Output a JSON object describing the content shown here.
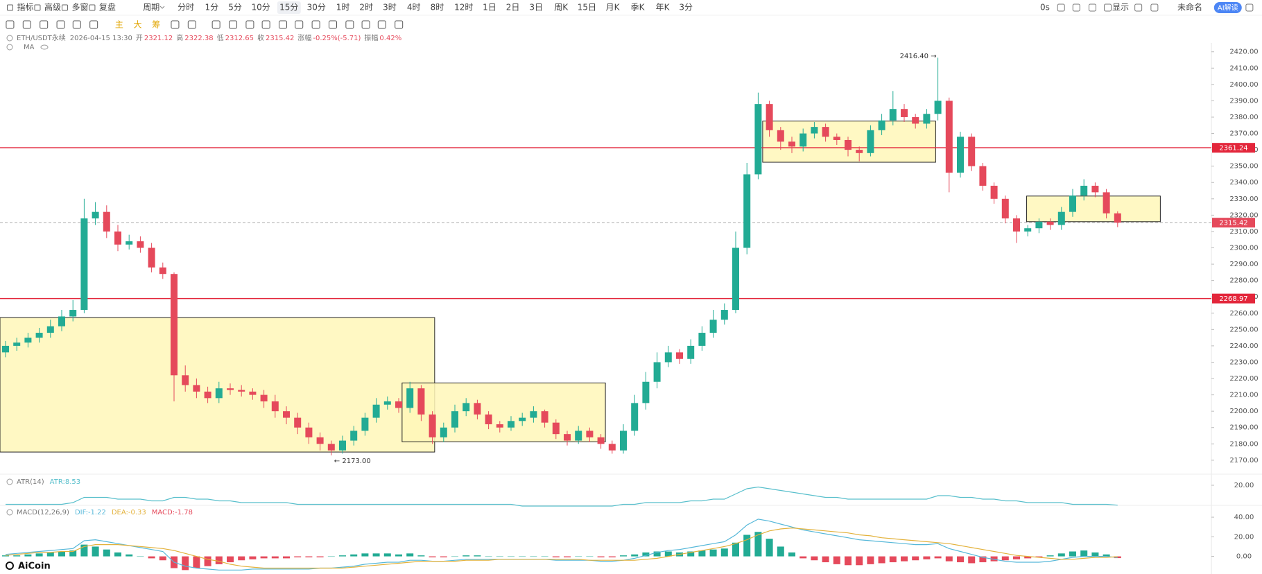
{
  "toolbar": {
    "left": [
      "指标",
      "高级",
      "多窗",
      "复盘"
    ],
    "period": "周期",
    "intervals": [
      "分时",
      "1分",
      "5分",
      "10分",
      "15分",
      "30分",
      "1时",
      "2时",
      "3时",
      "4时",
      "8时",
      "12时",
      "1日",
      "2日",
      "3日",
      "周K",
      "15日",
      "月K",
      "季K",
      "年K",
      "3分"
    ],
    "active_interval": "15分",
    "right": [
      "0s",
      "显示",
      "未命名"
    ],
    "ai_button": "AI解读",
    "quick": [
      "主",
      "大",
      "筹"
    ]
  },
  "header": {
    "symbol": "ETH/USDT永续",
    "time": "2026-04-15 13:30",
    "fields": [
      {
        "label": "开",
        "value": "2321.12"
      },
      {
        "label": "高",
        "value": "2322.38"
      },
      {
        "label": "低",
        "value": "2312.65"
      },
      {
        "label": "收",
        "value": "2315.42"
      },
      {
        "label": "涨幅",
        "value": "-0.25%(-5.71)"
      },
      {
        "label": "振幅",
        "value": "0.42%"
      }
    ],
    "ma": "MA"
  },
  "logo": "AiCoin",
  "chart_data": [
    {
      "type": "candlestick",
      "up_color": "#22ab94",
      "down_color": "#e5495b",
      "ylim": [
        2164,
        2422
      ],
      "yticks": [
        {
          "value": 2170,
          "label": "2170.00"
        },
        {
          "value": 2180,
          "label": "2180.00"
        },
        {
          "value": 2190,
          "label": "2190.00"
        },
        {
          "value": 2200,
          "label": "2200.00"
        },
        {
          "value": 2210,
          "label": "2210.00"
        },
        {
          "value": 2220,
          "label": "2220.00"
        },
        {
          "value": 2230,
          "label": "2230.00"
        },
        {
          "value": 2240,
          "label": "2240.00"
        },
        {
          "value": 2250,
          "label": "2250.00"
        },
        {
          "value": 2260,
          "label": "2260.00"
        },
        {
          "value": 2270,
          "label": "2270.00"
        },
        {
          "value": 2280,
          "label": "2280.00"
        },
        {
          "value": 2290,
          "label": "2290.00"
        },
        {
          "value": 2300,
          "label": "2300.00"
        },
        {
          "value": 2310,
          "label": "2310.00"
        },
        {
          "value": 2320,
          "label": "2320.00"
        },
        {
          "value": 2330,
          "label": "2330.00"
        },
        {
          "value": 2340,
          "label": "2340.00"
        },
        {
          "value": 2350,
          "label": "2350.00"
        },
        {
          "value": 2360,
          "label": "2360.00"
        },
        {
          "value": 2370,
          "label": "2370.00"
        },
        {
          "value": 2380,
          "label": "2380.00"
        },
        {
          "value": 2390,
          "label": "2390.00"
        },
        {
          "value": 2400,
          "label": "2400.00"
        },
        {
          "value": 2410,
          "label": "2410.00"
        },
        {
          "value": 2420,
          "label": "2420.00"
        }
      ],
      "open": [
        2236,
        2240,
        2242,
        2245,
        2248,
        2252,
        2258,
        2262,
        2318,
        2322,
        2310,
        2302,
        2304,
        2300,
        2288,
        2284,
        2222,
        2216,
        2212,
        2208,
        2214,
        2213,
        2212,
        2210,
        2206,
        2200,
        2196,
        2190,
        2184,
        2180,
        2176,
        2182,
        2188,
        2196,
        2204,
        2206,
        2202,
        2214,
        2198,
        2184,
        2190,
        2200,
        2205,
        2198,
        2192,
        2190,
        2194,
        2196,
        2200,
        2193,
        2186,
        2182,
        2188,
        2184,
        2180,
        2176,
        2188,
        2205,
        2218,
        2230,
        2236,
        2232,
        2240,
        2248,
        2256,
        2262,
        2300,
        2345,
        2388,
        2372,
        2365,
        2362,
        2370,
        2374,
        2368,
        2366,
        2360,
        2358,
        2372,
        2378,
        2385,
        2380,
        2376,
        2382,
        2390,
        2346,
        2368,
        2350,
        2338,
        2330,
        2318,
        2310,
        2312,
        2316,
        2314,
        2322,
        2332,
        2338,
        2334,
        2321.12
      ],
      "high": [
        2243,
        2245,
        2248,
        2251,
        2256,
        2262,
        2268,
        2330,
        2328,
        2326,
        2314,
        2308,
        2307,
        2303,
        2291,
        2285,
        2228,
        2220,
        2215,
        2218,
        2217,
        2216,
        2214,
        2213,
        2210,
        2203,
        2199,
        2193,
        2187,
        2182,
        2185,
        2191,
        2199,
        2208,
        2209,
        2208,
        2218,
        2216,
        2200,
        2193,
        2204,
        2208,
        2207,
        2200,
        2194,
        2197,
        2199,
        2203,
        2201,
        2195,
        2188,
        2191,
        2190,
        2186,
        2182,
        2192,
        2210,
        2224,
        2236,
        2240,
        2238,
        2244,
        2252,
        2262,
        2266,
        2310,
        2352,
        2395,
        2390,
        2374,
        2368,
        2373,
        2377,
        2376,
        2370,
        2368,
        2362,
        2375,
        2382,
        2396,
        2388,
        2382,
        2385,
        2416.4,
        2392,
        2371,
        2370,
        2352,
        2340,
        2332,
        2320,
        2314,
        2318,
        2318,
        2325,
        2336,
        2342,
        2340,
        2336,
        2322.38
      ],
      "low": [
        2233,
        2237,
        2239,
        2242,
        2245,
        2249,
        2255,
        2260,
        2314,
        2306,
        2298,
        2299,
        2297,
        2285,
        2281,
        2206,
        2212,
        2208,
        2205,
        2205,
        2210,
        2209,
        2207,
        2202,
        2196,
        2192,
        2186,
        2180,
        2176,
        2173,
        2174,
        2179,
        2185,
        2193,
        2201,
        2199,
        2199,
        2194,
        2180,
        2181,
        2187,
        2197,
        2195,
        2189,
        2187,
        2188,
        2191,
        2193,
        2190,
        2183,
        2179,
        2180,
        2181,
        2177,
        2174,
        2174,
        2185,
        2201,
        2214,
        2227,
        2229,
        2229,
        2237,
        2245,
        2253,
        2260,
        2296,
        2342,
        2368,
        2360,
        2358,
        2359,
        2367,
        2365,
        2363,
        2356,
        2353,
        2356,
        2369,
        2375,
        2377,
        2373,
        2373,
        2378,
        2334,
        2343,
        2347,
        2335,
        2327,
        2315,
        2303,
        2307,
        2309,
        2311,
        2311,
        2319,
        2329,
        2331,
        2318,
        2312.65
      ],
      "close": [
        2240,
        2242,
        2245,
        2248,
        2252,
        2258,
        2262,
        2318,
        2322,
        2310,
        2302,
        2304,
        2300,
        2288,
        2284,
        2222,
        2216,
        2212,
        2208,
        2214,
        2213,
        2212,
        2210,
        2206,
        2200,
        2196,
        2190,
        2184,
        2180,
        2176,
        2182,
        2188,
        2196,
        2204,
        2206,
        2202,
        2214,
        2198,
        2184,
        2190,
        2200,
        2205,
        2198,
        2192,
        2190,
        2194,
        2196,
        2200,
        2193,
        2186,
        2182,
        2188,
        2184,
        2180,
        2176,
        2188,
        2205,
        2218,
        2230,
        2236,
        2232,
        2240,
        2248,
        2256,
        2262,
        2300,
        2345,
        2388,
        2372,
        2365,
        2362,
        2370,
        2374,
        2368,
        2366,
        2360,
        2358,
        2372,
        2378,
        2385,
        2380,
        2376,
        2382,
        2390,
        2346,
        2368,
        2350,
        2338,
        2330,
        2318,
        2310,
        2312,
        2316,
        2314,
        2322,
        2332,
        2338,
        2334,
        2321.12,
        2315.42
      ],
      "boxes": [
        {
          "from": -1,
          "to": 38.2,
          "top": 2257.3,
          "bottom": 2175
        },
        {
          "from": 35.3,
          "to": 53.4,
          "top": 2217.3,
          "bottom": 2181.3
        },
        {
          "from": 67.4,
          "to": 82.8,
          "top": 2377.6,
          "bottom": 2352.4
        },
        {
          "from": 90.9,
          "to": 102.8,
          "top": 2331.7,
          "bottom": 2316
        }
      ],
      "box_color": "#fff7b8",
      "levels": [
        {
          "value": 2361.24,
          "label": "2361.24"
        },
        {
          "value": 2268.97,
          "label": "2268.97"
        }
      ],
      "level_color": "#e3263b",
      "last_price": {
        "value": 2315.42,
        "label": "2315.42"
      },
      "annotations": [
        {
          "text": "2416.40 →",
          "value": 2416.4,
          "kind": "high"
        },
        {
          "text": "← 2173.00",
          "value": 2173,
          "kind": "low"
        }
      ]
    },
    {
      "type": "line",
      "title": "ATR(14)",
      "readout": "ATR:8.53",
      "color": "#58bfcc",
      "ylim": [
        6,
        22
      ],
      "yticks": [
        {
          "value": 20,
          "label": "20.00"
        }
      ],
      "values": [
        9,
        9,
        9,
        9,
        9,
        9,
        10,
        13,
        13,
        13,
        12,
        12,
        12,
        11,
        11,
        13,
        13,
        12,
        12,
        11,
        11,
        10,
        10,
        10,
        10,
        10,
        9,
        9,
        9,
        9,
        9,
        9,
        9,
        9,
        9,
        9,
        9,
        9,
        9,
        9,
        9,
        9,
        9,
        9,
        9,
        9,
        8,
        8,
        8,
        8,
        8,
        8,
        8,
        8,
        8,
        9,
        9,
        10,
        10,
        10,
        10,
        11,
        11,
        12,
        12,
        15,
        18,
        19,
        18,
        17,
        16,
        15,
        14,
        13,
        13,
        12,
        12,
        12,
        12,
        12,
        12,
        12,
        12,
        14,
        14,
        13,
        13,
        12,
        12,
        11,
        11,
        10,
        10,
        10,
        10,
        9,
        9,
        9,
        9,
        8.53
      ]
    },
    {
      "type": "macd",
      "title": "MACD(12,26,9)",
      "readouts": [
        "DIF:-1.22",
        "DEA:-0.33",
        "MACD:-1.78"
      ],
      "ylim": [
        -18,
        45
      ],
      "yticks": [
        {
          "value": 0,
          "label": "0.00"
        },
        {
          "value": 20,
          "label": "20.00"
        },
        {
          "value": 40,
          "label": "40.00"
        }
      ],
      "hist_up_color": "#22ab94",
      "hist_down_color": "#e5495b",
      "dif_color": "#56b8d9",
      "dea_color": "#e3b23c",
      "hist": [
        1,
        1,
        2,
        3,
        4,
        5,
        6,
        12,
        10,
        7,
        4,
        2,
        0,
        -2,
        -4,
        -12,
        -14,
        -12,
        -10,
        -8,
        -6,
        -4,
        -3,
        -2,
        -2,
        -2,
        -1,
        -1,
        -1,
        0,
        1,
        2,
        3,
        3,
        3,
        2,
        3,
        1,
        -1,
        -1,
        0,
        1,
        1,
        0,
        0,
        0,
        0,
        0,
        0,
        -1,
        -1,
        0,
        0,
        -1,
        -1,
        1,
        2,
        4,
        5,
        5,
        4,
        5,
        6,
        7,
        8,
        14,
        22,
        25,
        18,
        10,
        4,
        -2,
        -4,
        -6,
        -8,
        -9,
        -9,
        -8,
        -7,
        -6,
        -5,
        -4,
        -3,
        -2,
        -5,
        -6,
        -7,
        -6,
        -5,
        -4,
        -3,
        -2,
        -1,
        1,
        3,
        5,
        6,
        4,
        2,
        -1.78
      ],
      "dif": [
        2,
        3,
        4,
        5,
        6,
        7,
        8,
        16,
        17,
        15,
        13,
        11,
        9,
        7,
        5,
        -6,
        -10,
        -12,
        -13,
        -14,
        -14,
        -14,
        -13,
        -13,
        -13,
        -13,
        -13,
        -13,
        -12,
        -12,
        -11,
        -10,
        -8,
        -7,
        -6,
        -6,
        -4,
        -4,
        -5,
        -5,
        -4,
        -3,
        -3,
        -3,
        -3,
        -3,
        -3,
        -3,
        -3,
        -4,
        -4,
        -4,
        -4,
        -5,
        -5,
        -4,
        -2,
        1,
        4,
        6,
        7,
        9,
        11,
        13,
        15,
        22,
        32,
        38,
        36,
        33,
        30,
        27,
        25,
        23,
        21,
        19,
        17,
        16,
        15,
        14,
        13,
        12,
        12,
        13,
        8,
        5,
        2,
        -1,
        -3,
        -5,
        -6,
        -6,
        -6,
        -5,
        -3,
        -1,
        0,
        0,
        0,
        -1.22
      ],
      "dea": [
        1,
        2,
        3,
        4,
        4,
        5,
        5,
        10,
        12,
        12,
        12,
        11,
        10,
        9,
        8,
        6,
        3,
        0,
        -3,
        -5,
        -8,
        -10,
        -11,
        -12,
        -12,
        -12,
        -12,
        -12,
        -12,
        -12,
        -12,
        -11,
        -10,
        -9,
        -8,
        -7,
        -6,
        -5,
        -5,
        -5,
        -5,
        -4,
        -4,
        -4,
        -3,
        -3,
        -3,
        -3,
        -3,
        -3,
        -3,
        -3,
        -4,
        -4,
        -4,
        -4,
        -4,
        -3,
        -2,
        0,
        2,
        4,
        6,
        8,
        10,
        13,
        17,
        22,
        26,
        28,
        29,
        28,
        27,
        26,
        25,
        24,
        22,
        21,
        19,
        18,
        17,
        16,
        15,
        14,
        13,
        11,
        9,
        7,
        5,
        3,
        1,
        0,
        -1,
        -2,
        -3,
        -3,
        -2,
        -1,
        -1,
        -0.33
      ]
    }
  ]
}
